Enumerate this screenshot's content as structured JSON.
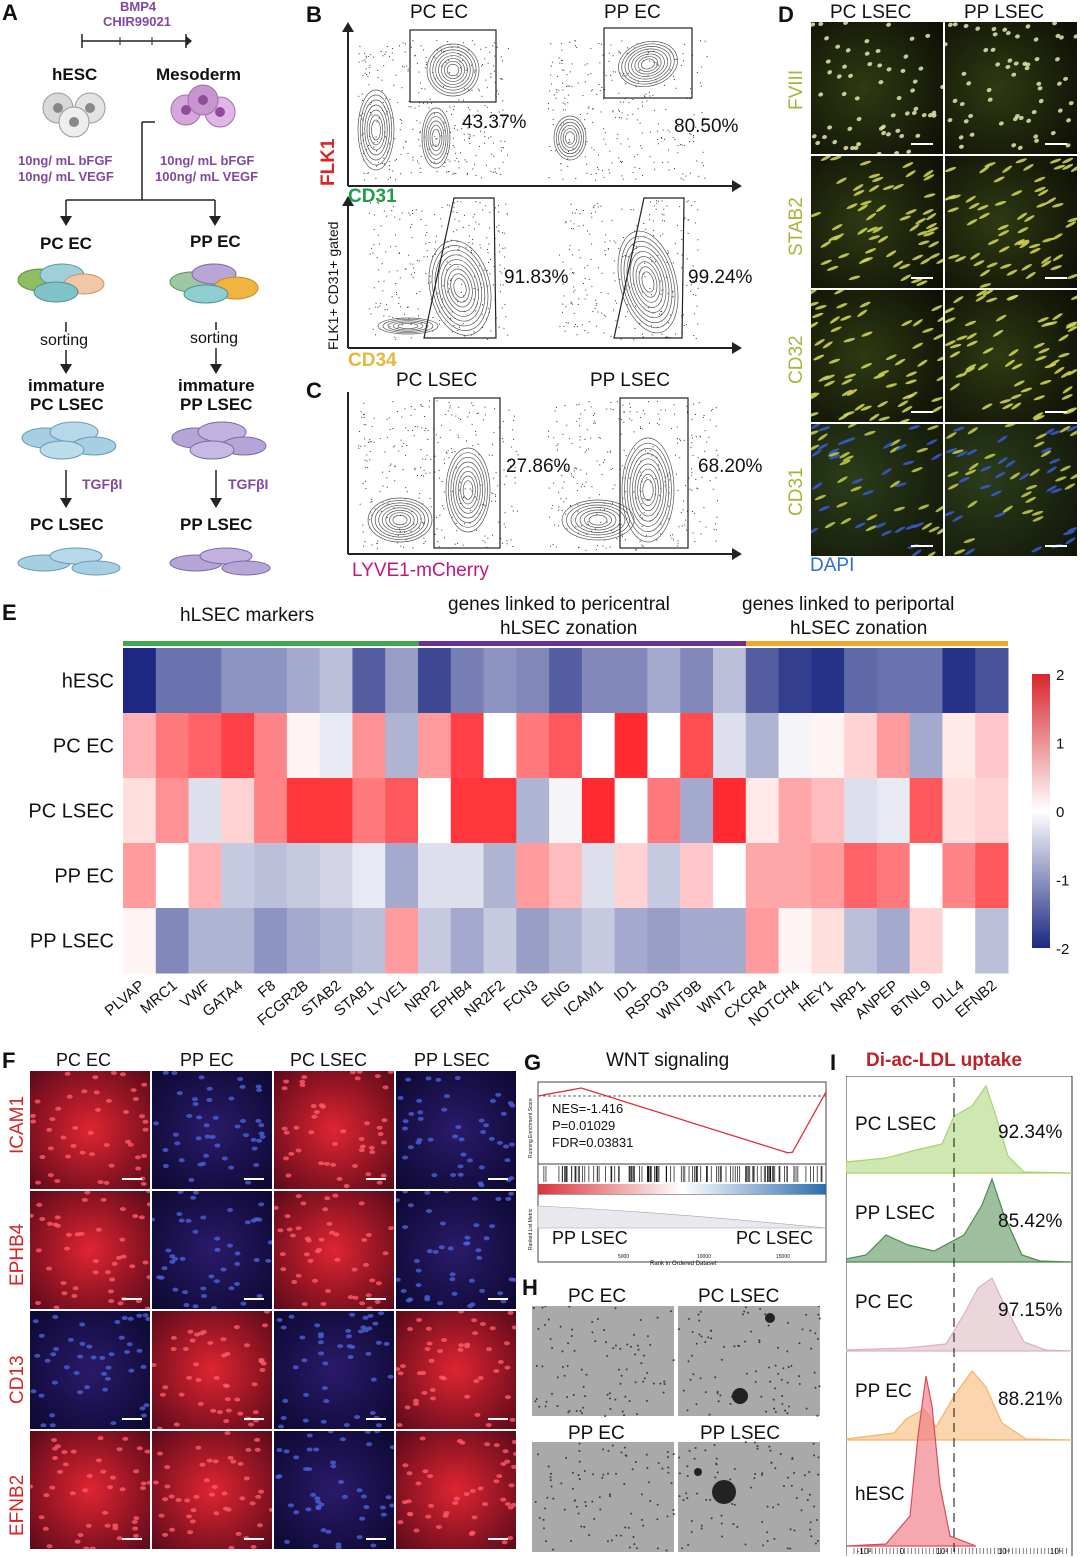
{
  "panels": {
    "A": {
      "label": "A",
      "inducers": [
        "BMP4",
        "CHIR99021"
      ],
      "hesc": "hESC",
      "mesoderm": "Mesoderm",
      "left_conditions": [
        "10ng/ mL bFGF",
        "10ng/ mL VEGF"
      ],
      "right_conditions": [
        "10ng/ mL bFGF",
        "100ng/ mL VEGF"
      ],
      "pc_ec": "PC EC",
      "pp_ec": "PP EC",
      "sorting": "sorting",
      "immature_pc": [
        "immature",
        "PC LSEC"
      ],
      "immature_pp": [
        "immature",
        "PP LSEC"
      ],
      "tgf": "TGFβI",
      "pc_lsec": "PC LSEC",
      "pp_lsec": "PP LSEC"
    },
    "B": {
      "label": "B",
      "col_left": "PC EC",
      "col_right": "PP EC",
      "top_y": "FLK1",
      "top_x": "CD31",
      "top_pcts": [
        "43.37%",
        "80.50%"
      ],
      "bottom_y": "FLK1+ CD31+ gated",
      "bottom_x": "CD34",
      "bottom_pcts": [
        "91.83%",
        "99.24%"
      ]
    },
    "C": {
      "label": "C",
      "col_left": "PC LSEC",
      "col_right": "PP LSEC",
      "x": "LYVE1-mCherry",
      "pcts": [
        "27.86%",
        "68.20%"
      ]
    },
    "D": {
      "label": "D",
      "cols": [
        "PC LSEC",
        "PP LSEC"
      ],
      "rows": [
        "FVIII",
        "STAB2",
        "CD32",
        "CD31"
      ],
      "stain": "DAPI"
    },
    "E": {
      "label": "E",
      "groups": [
        "hLSEC markers",
        "genes linked to pericentral",
        "hLSEC zonation",
        "genes linked to periportal",
        "hLSEC zonation"
      ],
      "colorbar_ticks": [
        "2",
        "1",
        "0",
        "-1",
        "-2"
      ]
    },
    "F": {
      "label": "F",
      "cols": [
        "PC EC",
        "PP EC",
        "PC LSEC",
        "PP LSEC"
      ],
      "rows": [
        "ICAM1",
        "EPHB4",
        "CD13",
        "EFNB2"
      ]
    },
    "G": {
      "label": "G",
      "title": "WNT signaling",
      "nes": "NES=-1.416",
      "p": "P=0.01029",
      "fdr": "FDR=0.03831",
      "left": "PP LSEC",
      "right": "PC LSEC",
      "ylabel_top": "Running Enrichment Score",
      "ylabel_bottom": "Ranked List Metric",
      "xlabel": "Rank in Ordered Dataset",
      "xticks": [
        "5000",
        "10000",
        "15000"
      ]
    },
    "H": {
      "label": "H",
      "labels": [
        "PC EC",
        "PC LSEC",
        "PP EC",
        "PP LSEC"
      ]
    },
    "I": {
      "label": "I",
      "title": "Di-ac-LDL uptake",
      "rows": [
        {
          "name": "PC LSEC",
          "pct": "92.34%",
          "color": "#a8d46f"
        },
        {
          "name": "PP LSEC",
          "pct": "85.42%",
          "color": "#4f8a4f"
        },
        {
          "name": "PC EC",
          "pct": "97.15%",
          "color": "#d9b4bd"
        },
        {
          "name": "PP EC",
          "pct": "88.21%",
          "color": "#f5b36a"
        },
        {
          "name": "hESC",
          "pct": "",
          "color": "#ef7a82"
        }
      ],
      "xticks": [
        "-10³",
        "0",
        "10³",
        "10⁴",
        "10⁵"
      ]
    }
  },
  "chart_data": {
    "type": "heatmap",
    "rows": [
      "hESC",
      "PC EC",
      "PC LSEC",
      "PP EC",
      "PP LSEC"
    ],
    "columns": [
      "PLVAP",
      "MRC1",
      "VWF",
      "GATA4",
      "F8",
      "FCGR2B",
      "STAB2",
      "STAB1",
      "LYVE1",
      "NRP2",
      "EPHB4",
      "NR2F2",
      "FCN3",
      "ENG",
      "ICAM1",
      "ID1",
      "RSPO3",
      "WNT9B",
      "WNT2",
      "CXCR4",
      "NOTCH4",
      "HEY1",
      "NRP1",
      "ANPEP",
      "BTNL9",
      "DLL4",
      "EFNB2"
    ],
    "values": [
      [
        -2.0,
        -1.3,
        -1.3,
        -1.0,
        -1.0,
        -0.8,
        -0.6,
        -1.5,
        -0.9,
        -1.7,
        -1.2,
        -1.0,
        -1.1,
        -1.5,
        -1.1,
        -1.1,
        -0.8,
        -1.1,
        -0.6,
        -1.5,
        -1.8,
        -1.9,
        -1.4,
        -1.3,
        -1.3,
        -1.9,
        -1.6
      ],
      [
        0.7,
        1.2,
        1.4,
        1.7,
        1.1,
        0.1,
        -0.2,
        1.0,
        -0.7,
        0.9,
        1.7,
        0.0,
        1.2,
        1.5,
        0.0,
        1.9,
        0.0,
        1.6,
        -0.3,
        -0.7,
        -0.1,
        0.1,
        0.4,
        0.9,
        -0.8,
        0.2,
        0.5
      ],
      [
        0.3,
        1.0,
        -0.3,
        0.4,
        1.1,
        1.8,
        1.8,
        1.2,
        1.5,
        0.0,
        1.8,
        1.8,
        -0.7,
        -0.1,
        1.9,
        0.0,
        1.2,
        -0.8,
        1.9,
        0.2,
        0.8,
        0.6,
        -0.3,
        -0.2,
        1.5,
        0.3,
        0.4
      ],
      [
        0.9,
        0.0,
        0.7,
        -0.5,
        -0.6,
        -0.5,
        -0.4,
        -0.2,
        -0.8,
        -0.3,
        -0.3,
        -0.7,
        0.9,
        0.6,
        -0.3,
        0.4,
        -0.5,
        0.5,
        0.0,
        0.8,
        0.8,
        0.9,
        1.4,
        1.2,
        0.0,
        1.1,
        1.5
      ],
      [
        0.1,
        -1.1,
        -0.7,
        -0.7,
        -1.0,
        -0.8,
        -0.7,
        -0.6,
        0.9,
        -0.5,
        -0.8,
        -0.5,
        -0.9,
        -0.7,
        -0.5,
        -0.8,
        -0.9,
        -0.8,
        -0.8,
        0.9,
        0.1,
        0.3,
        -0.6,
        -0.8,
        0.4,
        0.0,
        -0.6
      ]
    ],
    "colorbar": [
      -2,
      2
    ]
  }
}
